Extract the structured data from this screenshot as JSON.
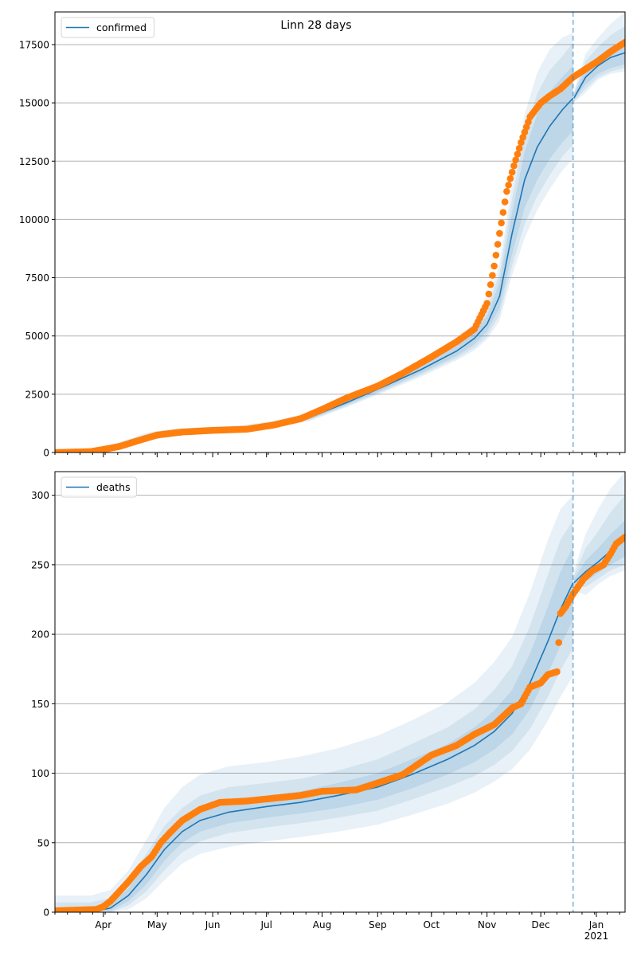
{
  "chart_data": [
    {
      "type": "line",
      "title": "Linn 28 days",
      "legend": {
        "label": "confirmed",
        "placement": "top-left"
      },
      "xlabel": "",
      "ylabel": "",
      "x_range": [
        "2020-03-05",
        "2021-01-17"
      ],
      "ylim": [
        0,
        18900
      ],
      "yticks": [
        0,
        2500,
        5000,
        7500,
        10000,
        12500,
        15000,
        17500
      ],
      "xticks": [
        {
          "date": "2020-04-01",
          "label": "Apr"
        },
        {
          "date": "2020-05-01",
          "label": "May"
        },
        {
          "date": "2020-06-01",
          "label": "Jun"
        },
        {
          "date": "2020-07-01",
          "label": "Jul"
        },
        {
          "date": "2020-08-01",
          "label": "Aug"
        },
        {
          "date": "2020-09-01",
          "label": "Sep"
        },
        {
          "date": "2020-10-01",
          "label": "Oct"
        },
        {
          "date": "2020-11-01",
          "label": "Nov"
        },
        {
          "date": "2020-12-01",
          "label": "Dec"
        },
        {
          "date": "2021-01-01",
          "label": "Jan\n2021"
        }
      ],
      "grid": "horizontal",
      "forecast_start": "2020-12-19",
      "model": {
        "name": "confirmed",
        "color": "#1f77b4",
        "dates": [
          "2020-03-05",
          "2020-03-25",
          "2020-04-10",
          "2020-04-25",
          "2020-05-10",
          "2020-05-25",
          "2020-06-15",
          "2020-07-05",
          "2020-07-25",
          "2020-08-15",
          "2020-09-05",
          "2020-09-25",
          "2020-10-15",
          "2020-10-25",
          "2020-11-01",
          "2020-11-08",
          "2020-11-15",
          "2020-11-22",
          "2020-11-29",
          "2020-12-06",
          "2020-12-13",
          "2020-12-19",
          "2020-12-26",
          "2021-01-02",
          "2021-01-09",
          "2021-01-17"
        ],
        "median": [
          0,
          60,
          300,
          650,
          850,
          930,
          1000,
          1200,
          1500,
          2150,
          2850,
          3550,
          4350,
          4900,
          5500,
          6700,
          9400,
          11700,
          13100,
          14000,
          14700,
          15200,
          16100,
          16600,
          16950,
          17150
        ],
        "bands": [
          {
            "lower": [
              0,
              40,
              250,
              580,
              780,
              880,
              950,
              1140,
              1430,
              2050,
              2720,
              3400,
              4150,
              4650,
              5200,
              6200,
              8500,
              10500,
              11700,
              12600,
              13300,
              13800,
              15800,
              16250,
              16500,
              16650
            ],
            "upper": [
              0,
              90,
              360,
              720,
              920,
              990,
              1060,
              1270,
              1580,
              2250,
              2980,
              3720,
              4560,
              5150,
              5850,
              7300,
              10300,
              12900,
              14500,
              15500,
              16100,
              16600,
              16500,
              17000,
              17400,
              17700
            ]
          },
          {
            "lower": [
              0,
              30,
              220,
              540,
              740,
              850,
              920,
              1110,
              1390,
              2000,
              2660,
              3320,
              4050,
              4500,
              5000,
              5900,
              8000,
              9800,
              11000,
              11900,
              12700,
              13200,
              15600,
              16100,
              16350,
              16500
            ],
            "upper": [
              0,
              110,
              400,
              780,
              970,
              1030,
              1100,
              1310,
              1640,
              2320,
              3060,
              3820,
              4700,
              5350,
              6100,
              7700,
              10900,
              13700,
              15400,
              16400,
              17000,
              17600,
              16800,
              17400,
              17900,
              18300
            ]
          },
          {
            "lower": [
              0,
              20,
              190,
              500,
              700,
              820,
              890,
              1080,
              1350,
              1950,
              2600,
              3240,
              3950,
              4380,
              4850,
              5650,
              7600,
              9200,
              10400,
              11300,
              12100,
              12600,
              15450,
              16000,
              16250,
              16350
            ],
            "upper": [
              0,
              140,
              450,
              850,
              1020,
              1080,
              1150,
              1360,
              1710,
              2400,
              3150,
              3930,
              4850,
              5550,
              6350,
              8100,
              11500,
              14500,
              16300,
              17300,
              17800,
              18000,
              17100,
              17800,
              18400,
              18900
            ]
          }
        ]
      },
      "observed": {
        "name": "observed confirmed",
        "color": "#ff7f0e",
        "dates": [
          "2020-03-05",
          "2020-03-25",
          "2020-04-01",
          "2020-04-10",
          "2020-04-20",
          "2020-05-01",
          "2020-05-15",
          "2020-06-01",
          "2020-06-20",
          "2020-07-05",
          "2020-07-20",
          "2020-08-01",
          "2020-08-15",
          "2020-09-01",
          "2020-09-15",
          "2020-10-01",
          "2020-10-15",
          "2020-10-25",
          "2020-11-01",
          "2020-11-05",
          "2020-11-08",
          "2020-11-12",
          "2020-11-16",
          "2020-11-20",
          "2020-11-25",
          "2020-12-01",
          "2020-12-06",
          "2020-12-12",
          "2020-12-19",
          "2020-12-26",
          "2021-01-02",
          "2021-01-09",
          "2021-01-17"
        ],
        "values": [
          0,
          40,
          130,
          260,
          500,
          750,
          880,
          950,
          1000,
          1180,
          1450,
          1850,
          2350,
          2850,
          3400,
          4100,
          4750,
          5300,
          6400,
          8000,
          9400,
          11200,
          12300,
          13300,
          14400,
          15000,
          15300,
          15600,
          16100,
          16450,
          16800,
          17200,
          17600
        ]
      }
    },
    {
      "type": "line",
      "title": "",
      "legend": {
        "label": "deaths",
        "placement": "top-left"
      },
      "xlabel": "",
      "ylabel": "",
      "x_range": [
        "2020-03-05",
        "2021-01-17"
      ],
      "ylim": [
        0,
        317
      ],
      "yticks": [
        0,
        50,
        100,
        150,
        200,
        250,
        300
      ],
      "xticks": [
        {
          "date": "2020-04-01",
          "label": "Apr"
        },
        {
          "date": "2020-05-01",
          "label": "May"
        },
        {
          "date": "2020-06-01",
          "label": "Jun"
        },
        {
          "date": "2020-07-01",
          "label": "Jul"
        },
        {
          "date": "2020-08-01",
          "label": "Aug"
        },
        {
          "date": "2020-09-01",
          "label": "Sep"
        },
        {
          "date": "2020-10-01",
          "label": "Oct"
        },
        {
          "date": "2020-11-01",
          "label": "Nov"
        },
        {
          "date": "2020-12-01",
          "label": "Dec"
        },
        {
          "date": "2021-01-01",
          "label": "Jan\n2021"
        }
      ],
      "grid": "horizontal",
      "forecast_start": "2020-12-19",
      "model": {
        "name": "deaths",
        "color": "#1f77b4",
        "dates": [
          "2020-03-05",
          "2020-03-25",
          "2020-04-05",
          "2020-04-15",
          "2020-04-25",
          "2020-05-05",
          "2020-05-15",
          "2020-05-25",
          "2020-06-10",
          "2020-07-01",
          "2020-07-20",
          "2020-08-10",
          "2020-09-01",
          "2020-09-20",
          "2020-10-10",
          "2020-10-25",
          "2020-11-05",
          "2020-11-15",
          "2020-11-25",
          "2020-12-05",
          "2020-12-12",
          "2020-12-19",
          "2020-12-26",
          "2021-01-02",
          "2021-01-09",
          "2021-01-17"
        ],
        "median": [
          0,
          0,
          3,
          12,
          27,
          45,
          58,
          66,
          72,
          76,
          79,
          84,
          90,
          99,
          110,
          120,
          130,
          143,
          165,
          195,
          218,
          237,
          245,
          252,
          260,
          268
        ],
        "bands": [
          {
            "lower": [
              0,
              0,
              1,
              8,
              20,
              37,
              50,
              58,
              64,
              68,
              71,
              75,
              81,
              89,
              99,
              108,
              117,
              128,
              146,
              172,
              192,
              210,
              238,
              244,
              250,
              256
            ],
            "upper": [
              3,
              3,
              6,
              17,
              35,
              53,
              66,
              74,
              80,
              84,
              87,
              93,
              100,
              110,
              121,
              133,
              145,
              160,
              186,
              220,
              245,
              263,
              253,
              262,
              272,
              282
            ]
          },
          {
            "lower": [
              0,
              0,
              0,
              5,
              15,
              30,
              43,
              51,
              57,
              61,
              64,
              68,
              73,
              81,
              90,
              98,
              106,
              116,
              132,
              155,
              174,
              190,
              234,
              240,
              246,
              250
            ],
            "upper": [
              7,
              7,
              10,
              22,
              42,
              62,
              75,
              84,
              90,
              93,
              96,
              102,
              110,
              121,
              133,
              146,
              160,
              177,
              206,
              243,
              268,
              282,
              262,
              274,
              288,
              300
            ]
          },
          {
            "lower": [
              0,
              0,
              0,
              2,
              10,
              23,
              35,
              42,
              47,
              51,
              54,
              58,
              63,
              70,
              78,
              86,
              94,
              103,
              117,
              138,
              155,
              170,
              228,
              236,
              242,
              246
            ],
            "upper": [
              12,
              12,
              16,
              30,
              52,
              75,
              90,
              99,
              105,
              108,
              112,
              118,
              127,
              138,
              151,
              165,
              180,
              198,
              230,
              268,
              290,
              300,
              272,
              290,
              305,
              317
            ]
          }
        ]
      },
      "observed": {
        "name": "observed deaths",
        "color": "#ff7f0e",
        "dates": [
          "2020-03-05",
          "2020-03-28",
          "2020-04-01",
          "2020-04-05",
          "2020-04-10",
          "2020-04-15",
          "2020-04-22",
          "2020-04-28",
          "2020-05-03",
          "2020-05-08",
          "2020-05-15",
          "2020-05-25",
          "2020-06-05",
          "2020-06-20",
          "2020-07-05",
          "2020-07-20",
          "2020-08-01",
          "2020-08-20",
          "2020-09-01",
          "2020-09-15",
          "2020-10-01",
          "2020-10-15",
          "2020-10-25",
          "2020-11-05",
          "2020-11-15",
          "2020-11-20",
          "2020-11-25",
          "2020-12-01",
          "2020-12-05",
          "2020-12-10",
          "2020-12-12",
          "2020-12-15",
          "2020-12-19",
          "2020-12-25",
          "2020-12-30",
          "2021-01-05",
          "2021-01-09",
          "2021-01-12",
          "2021-01-17"
        ],
        "values": [
          1,
          2,
          4,
          8,
          15,
          22,
          33,
          40,
          50,
          57,
          66,
          74,
          79,
          80,
          82,
          84,
          87,
          88,
          93,
          99,
          113,
          120,
          128,
          135,
          147,
          150,
          162,
          165,
          171,
          173,
          215,
          220,
          229,
          240,
          246,
          250,
          258,
          265,
          270
        ]
      }
    }
  ]
}
